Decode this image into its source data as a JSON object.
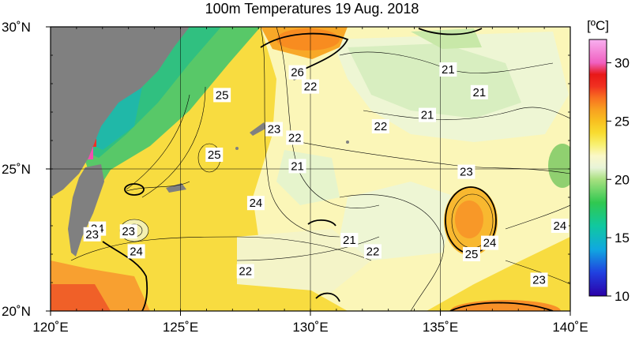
{
  "title": "100m Temperatures  19 Aug. 2018",
  "map": {
    "lon_range": [
      120,
      140
    ],
    "lat_range": [
      20,
      30
    ],
    "lon_ticks": [
      "120˚E",
      "125˚E",
      "130˚E",
      "135˚E",
      "140˚E"
    ],
    "lat_ticks": [
      "30˚N",
      "25˚N",
      "20˚N"
    ],
    "grid": true,
    "contour_labels": [
      {
        "text": "26",
        "lon": 129.5,
        "lat": 28.4
      },
      {
        "text": "22",
        "lon": 130.0,
        "lat": 27.9
      },
      {
        "text": "21",
        "lon": 135.3,
        "lat": 28.5
      },
      {
        "text": "21",
        "lon": 136.5,
        "lat": 27.7
      },
      {
        "text": "21",
        "lon": 134.5,
        "lat": 26.9
      },
      {
        "text": "22",
        "lon": 132.7,
        "lat": 26.5
      },
      {
        "text": "25",
        "lon": 126.6,
        "lat": 27.6
      },
      {
        "text": "23",
        "lon": 128.6,
        "lat": 26.4
      },
      {
        "text": "22",
        "lon": 129.4,
        "lat": 26.1
      },
      {
        "text": "25",
        "lon": 126.3,
        "lat": 25.5
      },
      {
        "text": "21",
        "lon": 129.5,
        "lat": 25.1
      },
      {
        "text": "23",
        "lon": 136.0,
        "lat": 24.9
      },
      {
        "text": "24",
        "lon": 127.9,
        "lat": 23.8
      },
      {
        "text": "24",
        "lon": 121.8,
        "lat": 22.9
      },
      {
        "text": "23",
        "lon": 121.6,
        "lat": 22.7
      },
      {
        "text": "23",
        "lon": 123.0,
        "lat": 22.8
      },
      {
        "text": "24",
        "lon": 123.3,
        "lat": 22.1
      },
      {
        "text": "21",
        "lon": 131.5,
        "lat": 22.5
      },
      {
        "text": "22",
        "lon": 132.4,
        "lat": 22.1
      },
      {
        "text": "24",
        "lon": 136.9,
        "lat": 22.4
      },
      {
        "text": "25",
        "lon": 136.2,
        "lat": 22.0
      },
      {
        "text": "24",
        "lon": 139.6,
        "lat": 23.0
      },
      {
        "text": "22",
        "lon": 127.5,
        "lat": 21.4
      },
      {
        "text": "23",
        "lon": 138.8,
        "lat": 21.1
      }
    ]
  },
  "colorbar": {
    "title": "[ºC]",
    "ticks": [
      "30",
      "25",
      "20",
      "15",
      "10"
    ],
    "min": 10,
    "max": 32,
    "stops": [
      {
        "value": 10,
        "color": "#2b00a8"
      },
      {
        "value": 12,
        "color": "#2040e0"
      },
      {
        "value": 14,
        "color": "#10a8e0"
      },
      {
        "value": 16,
        "color": "#10c8a0"
      },
      {
        "value": 18,
        "color": "#30c850"
      },
      {
        "value": 20,
        "color": "#a8e080"
      },
      {
        "value": 21,
        "color": "#e8f4d8"
      },
      {
        "value": 22,
        "color": "#fbf8c8"
      },
      {
        "value": 23,
        "color": "#f8f070"
      },
      {
        "value": 24,
        "color": "#f8dc30"
      },
      {
        "value": 25,
        "color": "#f8c020"
      },
      {
        "value": 26,
        "color": "#f8a020"
      },
      {
        "value": 27,
        "color": "#f87020"
      },
      {
        "value": 28,
        "color": "#f03020"
      },
      {
        "value": 29,
        "color": "#e81818"
      },
      {
        "value": 30,
        "color": "#f060c0"
      },
      {
        "value": 32,
        "color": "#f8b0f0"
      }
    ]
  }
}
